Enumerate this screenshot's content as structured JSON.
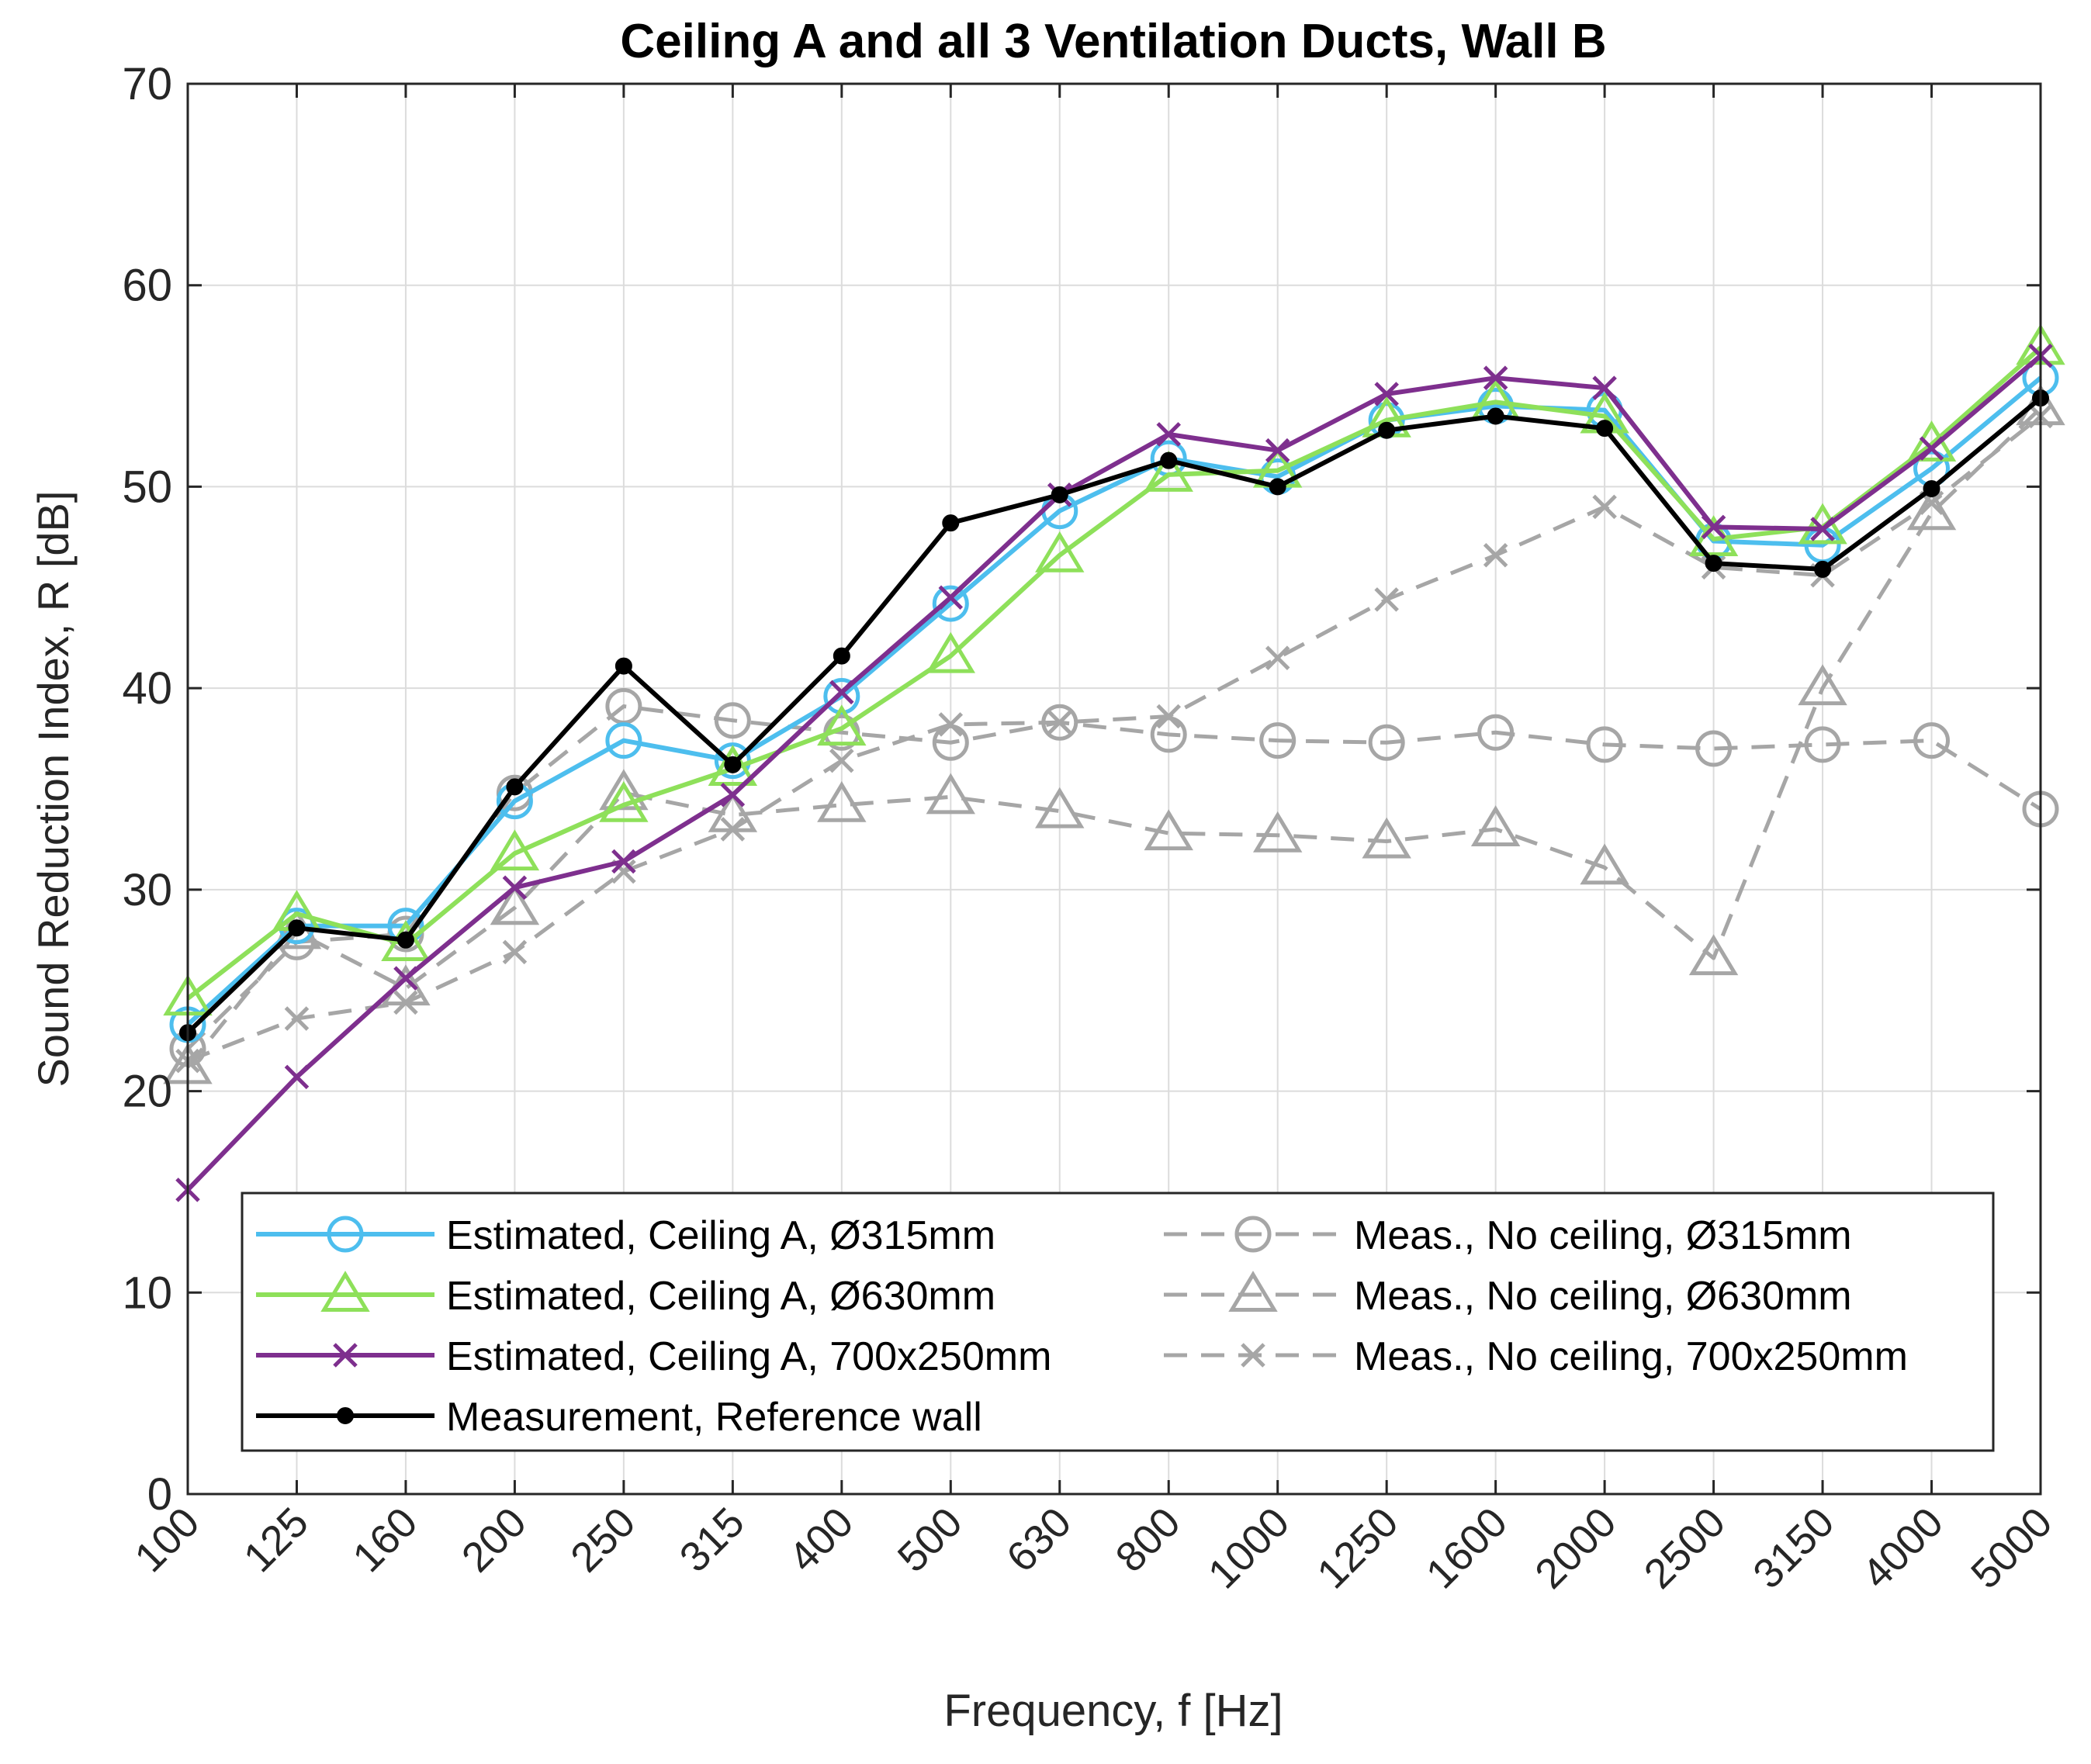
{
  "chart_data": {
    "type": "line",
    "title": "Ceiling A and all 3 Ventilation Ducts, Wall B",
    "xlabel": "Frequency, f [Hz]",
    "ylabel": "Sound Reduction Index, R [dB]",
    "categories": [
      "100",
      "125",
      "160",
      "200",
      "250",
      "315",
      "400",
      "500",
      "630",
      "800",
      "1000",
      "1250",
      "1600",
      "2000",
      "2500",
      "3150",
      "4000",
      "5000"
    ],
    "ylim": [
      0,
      70
    ],
    "yticks": [
      "0",
      "10",
      "20",
      "30",
      "40",
      "50",
      "60",
      "70"
    ],
    "grid": true,
    "legend_position": "bottom-center",
    "series": [
      {
        "name": "Estimated, Ceiling A, Ø315mm",
        "color": "#4dbeee",
        "dash": "solid",
        "marker": "circle",
        "values": [
          23.3,
          28.2,
          28.2,
          34.4,
          37.4,
          36.4,
          39.6,
          44.2,
          48.8,
          51.4,
          50.5,
          53.3,
          54.0,
          53.8,
          47.3,
          47.1,
          50.9,
          55.4
        ]
      },
      {
        "name": "Estimated, Ceiling A, Ø630mm",
        "color": "#8ee05a",
        "dash": "solid",
        "marker": "triangle",
        "values": [
          24.6,
          28.8,
          27.3,
          31.8,
          34.2,
          36.0,
          38.0,
          41.6,
          46.6,
          50.6,
          50.8,
          53.3,
          54.2,
          53.5,
          47.4,
          48.0,
          52.1,
          56.9
        ]
      },
      {
        "name": "Estimated, Ceiling A, 700x250mm",
        "color": "#7e2f8e",
        "dash": "solid",
        "marker": "x",
        "values": [
          15.1,
          20.7,
          25.6,
          30.1,
          31.4,
          34.7,
          39.8,
          44.5,
          49.6,
          52.6,
          51.8,
          54.6,
          55.4,
          54.9,
          48.0,
          47.9,
          51.9,
          56.5
        ]
      },
      {
        "name": "Measurement, Reference wall",
        "color": "#000000",
        "dash": "solid",
        "marker": "dot",
        "values": [
          22.9,
          28.1,
          27.5,
          35.1,
          41.1,
          36.2,
          41.6,
          48.2,
          49.6,
          51.3,
          50.0,
          52.8,
          53.5,
          52.9,
          46.2,
          45.9,
          49.9,
          54.4
        ]
      },
      {
        "name": "Meas., No ceiling, Ø315mm",
        "color": "#a6a6a6",
        "dash": "dashed",
        "marker": "circle",
        "values": [
          22.1,
          27.4,
          27.8,
          34.8,
          39.1,
          38.4,
          37.8,
          37.3,
          38.3,
          37.7,
          37.4,
          37.3,
          37.8,
          37.2,
          37.0,
          37.2,
          37.4,
          34.0
        ]
      },
      {
        "name": "Meas., No ceiling, Ø630mm",
        "color": "#a6a6a6",
        "dash": "dashed",
        "marker": "triangle",
        "values": [
          21.2,
          27.9,
          25.1,
          29.1,
          34.8,
          33.7,
          34.2,
          34.6,
          33.9,
          32.8,
          32.7,
          32.4,
          33.0,
          31.1,
          26.6,
          40.0,
          48.7,
          53.9
        ]
      },
      {
        "name": "Meas., No ceiling, 700x250mm",
        "color": "#a6a6a6",
        "dash": "dashed",
        "marker": "x",
        "values": [
          21.5,
          23.6,
          24.4,
          26.9,
          30.9,
          33.0,
          36.4,
          38.2,
          38.3,
          38.6,
          41.5,
          44.4,
          46.6,
          49.0,
          46.0,
          45.6,
          49.2,
          53.5
        ]
      }
    ]
  }
}
